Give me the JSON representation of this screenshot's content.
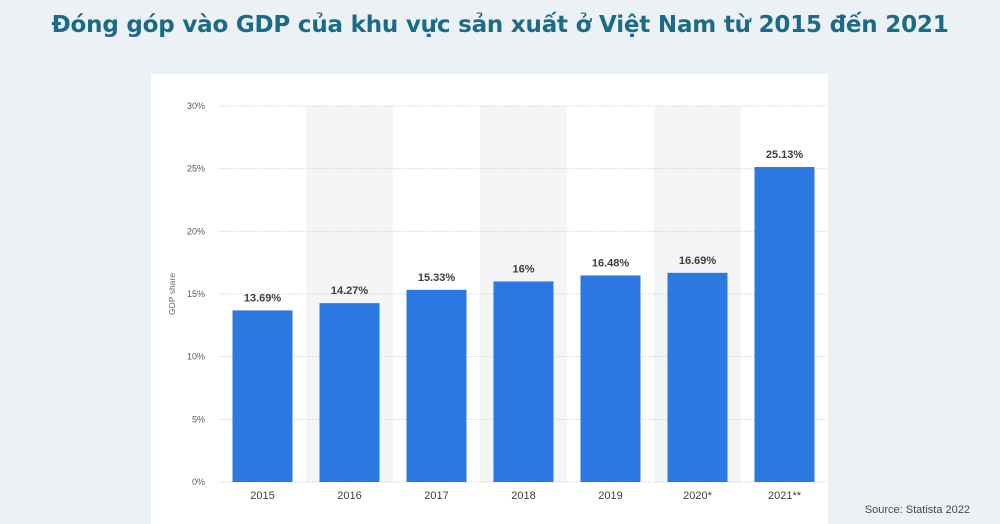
{
  "page": {
    "title": "Đóng góp vào GDP của khu vực sản xuất ở Việt Nam từ 2015 đến 2021",
    "source": "Source: Statista 2022"
  },
  "chart_data": {
    "type": "bar",
    "title": "",
    "xlabel": "",
    "ylabel": "GDP share",
    "categories": [
      "2015",
      "2016",
      "2017",
      "2018",
      "2019",
      "2020*",
      "2021**"
    ],
    "values": [
      13.69,
      14.27,
      15.33,
      16,
      16.48,
      16.69,
      25.13
    ],
    "data_labels": [
      "13.69%",
      "14.27%",
      "15.33%",
      "16%",
      "16.48%",
      "16.69%",
      "25.13%"
    ],
    "ylim": [
      0,
      30
    ],
    "yticks": [
      0,
      5,
      10,
      15,
      20,
      25,
      30
    ],
    "ytick_labels": [
      "0%",
      "5%",
      "10%",
      "15%",
      "20%",
      "25%",
      "30%"
    ],
    "grid": true,
    "colors": {
      "bar": "#2b78e0",
      "alt_band": "#f4f5f7",
      "grid": "#cfd3d7"
    }
  }
}
